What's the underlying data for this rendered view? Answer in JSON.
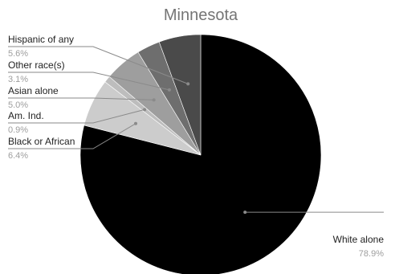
{
  "chart_data": {
    "type": "pie",
    "title": "Minnesota",
    "slices": [
      {
        "label": "White alone",
        "pct_label": "78.9%",
        "value": 78.9,
        "color": "#000000"
      },
      {
        "label": "Black or African",
        "pct_label": "6.4%",
        "value": 6.4,
        "color": "#cccccc"
      },
      {
        "label": "Am. Ind.",
        "pct_label": "0.9%",
        "value": 0.9,
        "color": "#bdbdbd"
      },
      {
        "label": "Asian alone",
        "pct_label": "5.0%",
        "value": 5.0,
        "color": "#9e9e9e"
      },
      {
        "label": "Other race(s)",
        "pct_label": "3.1%",
        "value": 3.1,
        "color": "#6e6e6e"
      },
      {
        "label": "Hispanic of any",
        "pct_label": "5.6%",
        "value": 5.6,
        "color": "#4a4a4a"
      }
    ],
    "start": "12 o'clock",
    "direction": "clockwise"
  }
}
